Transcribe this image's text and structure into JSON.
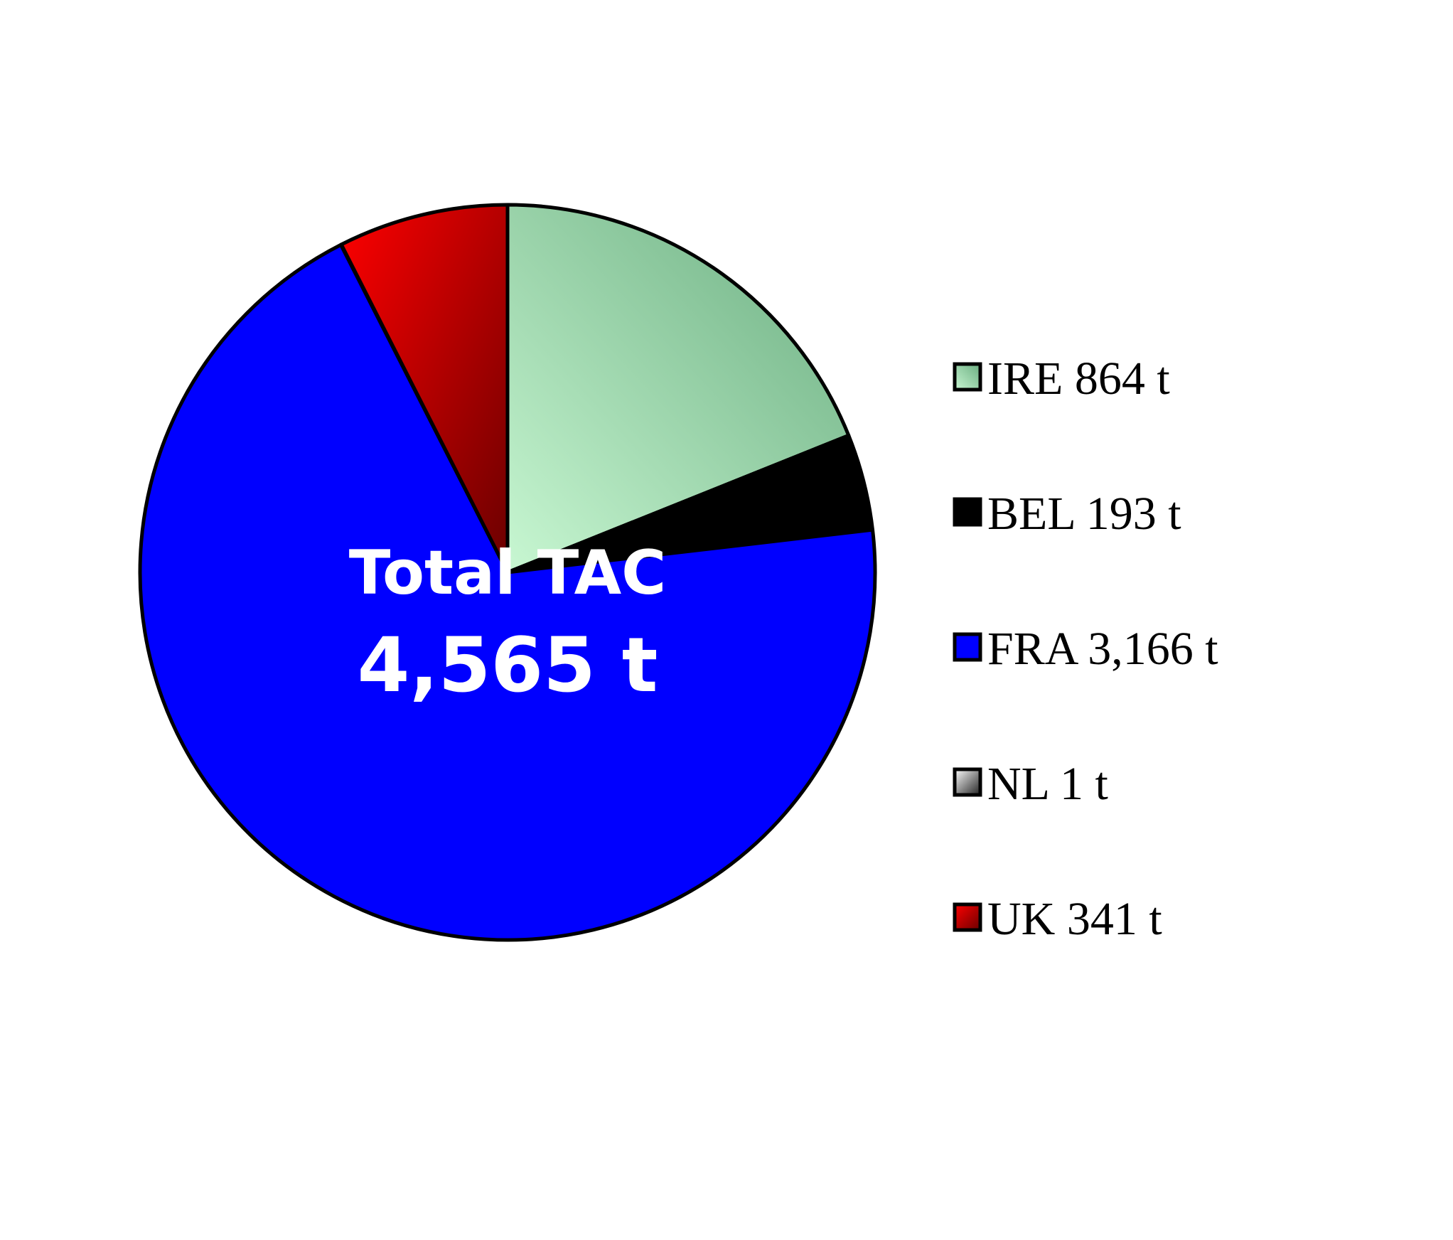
{
  "chart_data": {
    "type": "pie",
    "title": "",
    "center_label": {
      "line1": "Total TAC",
      "line2": "4,565 t"
    },
    "slices": [
      {
        "key": "IRE",
        "label": "IRE 864 t",
        "value": 864,
        "color": "#8fd0a0"
      },
      {
        "key": "BEL",
        "label": "BEL 193 t",
        "value": 193,
        "color": "#000000"
      },
      {
        "key": "FRA",
        "label": "FRA 3,166 t",
        "value": 3166,
        "color": "#0000ff"
      },
      {
        "key": "NL",
        "label": "NL 1 t",
        "value": 1,
        "color": "#cccccc"
      },
      {
        "key": "UK",
        "label": "UK 341 t",
        "value": 341,
        "color": "#cc0000"
      }
    ],
    "legend_position": "right",
    "start_angle": "12 o'clock",
    "direction": "clockwise"
  }
}
